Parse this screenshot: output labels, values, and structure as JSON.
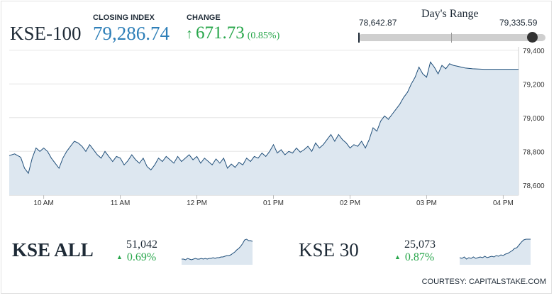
{
  "header": {
    "index_name": "KSE-100",
    "closing_label": "CLOSING INDEX",
    "closing_value": "79,286.74",
    "change_label": "CHANGE",
    "change_value": "671.73",
    "change_pct": "(0.85%)",
    "change_icon": "arrow-up-icon",
    "positive_color": "#27a64a",
    "value_color": "#2e7fb8"
  },
  "days_range": {
    "title": "Day's Range",
    "low": "78,642.87",
    "high": "79,335.59"
  },
  "chart_data": [
    {
      "type": "area",
      "title": "KSE-100",
      "x_ticks": [
        "10 AM",
        "11 AM",
        "12 PM",
        "01 PM",
        "02 PM",
        "03 PM",
        "04 PM"
      ],
      "y_ticks": [
        "79,400",
        "79,200",
        "79,000",
        "78,800",
        "78,600"
      ],
      "ylim": [
        78540,
        79420
      ],
      "xlim": [
        9.55,
        16.2
      ],
      "grid": "horizontal",
      "line_color": "#1f4e79",
      "fill_color": "#dde7f0",
      "x": [
        9.55,
        9.62,
        9.7,
        9.75,
        9.8,
        9.85,
        9.9,
        9.95,
        10.0,
        10.05,
        10.1,
        10.15,
        10.2,
        10.25,
        10.3,
        10.35,
        10.4,
        10.45,
        10.5,
        10.55,
        10.6,
        10.65,
        10.7,
        10.75,
        10.8,
        10.85,
        10.9,
        10.95,
        11.0,
        11.05,
        11.1,
        11.15,
        11.2,
        11.25,
        11.3,
        11.35,
        11.4,
        11.45,
        11.5,
        11.55,
        11.6,
        11.65,
        11.7,
        11.75,
        11.8,
        11.85,
        11.9,
        11.95,
        12.0,
        12.05,
        12.1,
        12.15,
        12.2,
        12.25,
        12.3,
        12.35,
        12.4,
        12.45,
        12.5,
        12.55,
        12.6,
        12.65,
        12.7,
        12.75,
        12.8,
        12.85,
        12.9,
        12.95,
        13.0,
        13.05,
        13.1,
        13.15,
        13.2,
        13.25,
        13.3,
        13.35,
        13.4,
        13.45,
        13.5,
        13.55,
        13.6,
        13.65,
        13.7,
        13.75,
        13.8,
        13.85,
        13.9,
        13.95,
        14.0,
        14.05,
        14.1,
        14.15,
        14.2,
        14.25,
        14.3,
        14.35,
        14.4,
        14.45,
        14.5,
        14.55,
        14.6,
        14.65,
        14.7,
        14.75,
        14.8,
        14.85,
        14.9,
        14.95,
        15.0,
        15.05,
        15.1,
        15.15,
        15.2,
        15.25,
        15.3,
        15.35,
        15.4,
        15.45,
        15.5,
        15.6,
        15.75,
        15.9,
        16.05,
        16.2
      ],
      "y": [
        78775,
        78785,
        78765,
        78700,
        78670,
        78760,
        78820,
        78800,
        78820,
        78800,
        78760,
        78730,
        78700,
        78760,
        78800,
        78830,
        78860,
        78850,
        78830,
        78800,
        78840,
        78810,
        78780,
        78760,
        78800,
        78770,
        78740,
        78770,
        78760,
        78720,
        78745,
        78780,
        78750,
        78730,
        78760,
        78710,
        78690,
        78720,
        78760,
        78740,
        78770,
        78750,
        78730,
        78770,
        78740,
        78760,
        78780,
        78750,
        78770,
        78730,
        78760,
        78740,
        78720,
        78755,
        78730,
        78760,
        78700,
        78725,
        78705,
        78735,
        78720,
        78760,
        78740,
        78770,
        78760,
        78790,
        78770,
        78800,
        78840,
        78790,
        78810,
        78780,
        78800,
        78790,
        78820,
        78795,
        78810,
        78830,
        78800,
        78850,
        78820,
        78840,
        78870,
        78900,
        78860,
        78900,
        78870,
        78850,
        78820,
        78840,
        78830,
        78860,
        78820,
        78870,
        78940,
        78920,
        78980,
        79010,
        78990,
        79020,
        79050,
        79080,
        79120,
        79150,
        79200,
        79240,
        79300,
        79260,
        79240,
        79330,
        79300,
        79260,
        79310,
        79290,
        79320,
        79310,
        79305,
        79300,
        79295,
        79290,
        79287,
        79287,
        79287,
        79287
      ]
    },
    {
      "type": "area",
      "title": "KSE ALL",
      "value": "51,042",
      "change": "0.69%",
      "change_icon": "triangle-up-icon",
      "y": [
        30,
        30,
        31,
        29,
        30,
        31,
        30,
        29,
        30,
        30,
        29,
        30,
        29,
        30,
        29,
        29,
        28,
        29,
        28,
        28,
        27,
        27,
        26,
        25,
        25,
        24,
        22,
        20,
        17,
        15,
        12,
        8,
        3,
        2,
        4,
        4,
        5
      ]
    },
    {
      "type": "area",
      "title": "KSE 30",
      "value": "25,073",
      "change": "0.87%",
      "change_icon": "triangle-up-icon",
      "y": [
        28,
        29,
        27,
        30,
        28,
        29,
        27,
        29,
        28,
        27,
        28,
        26,
        28,
        27,
        26,
        27,
        25,
        26,
        24,
        25,
        23,
        22,
        20,
        18,
        15,
        14,
        10,
        6,
        3,
        2,
        2,
        2
      ]
    }
  ],
  "courtesy": "COURTESY: CAPITALSTAKE.COM"
}
